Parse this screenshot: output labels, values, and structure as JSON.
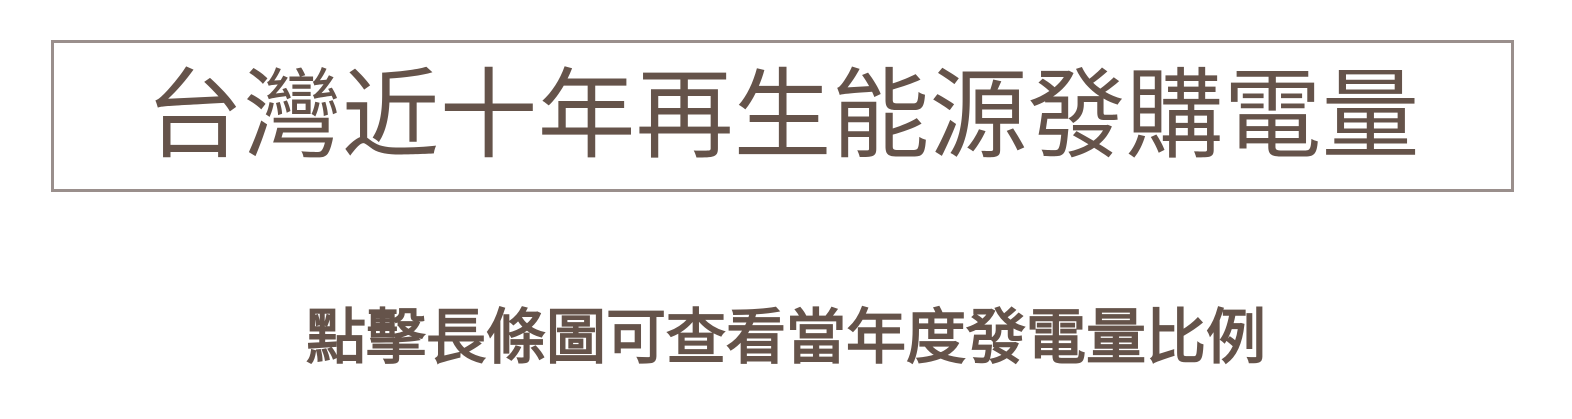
{
  "header": {
    "title": "台灣近十年再生能源發購電量"
  },
  "instruction": {
    "text": "點擊長條圖可查看當年度發電量比例"
  },
  "colors": {
    "text": "#65534a",
    "border": "#9a8f8c",
    "background": "#ffffff"
  }
}
